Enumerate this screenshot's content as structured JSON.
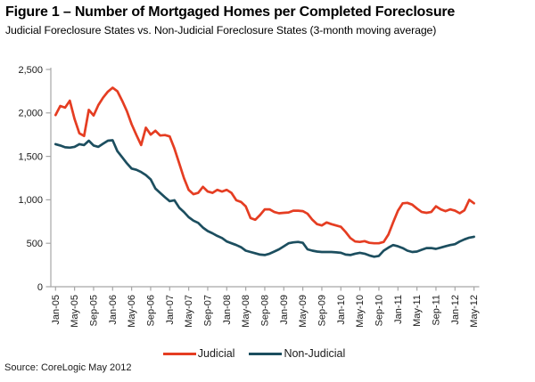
{
  "header": {
    "title": "Figure 1 – Number of Mortgaged Homes per Completed Foreclosure",
    "subtitle": "Judicial Foreclosure States vs. Non-Judicial Foreclosure States (3-month moving average)"
  },
  "source": "Source: CoreLogic May 2012",
  "legend": [
    {
      "label": "Judicial",
      "color": "#e53d22"
    },
    {
      "label": "Non-Judicial",
      "color": "#1c4e5f"
    }
  ],
  "chart_data": {
    "type": "line",
    "title": "Figure 1 – Number of Mortgaged Homes per Completed Foreclosure",
    "subtitle": "Judicial Foreclosure States vs. Non-Judicial Foreclosure States (3-month moving average)",
    "xlabel": "",
    "ylabel": "",
    "ylim": [
      0,
      2500
    ],
    "y_ticks": [
      0,
      500,
      1000,
      1500,
      2000,
      2500
    ],
    "y_tick_labels": [
      "0",
      "500",
      "1,000",
      "1,500",
      "2,000",
      "2,500"
    ],
    "x_tick_every": 4,
    "grid": false,
    "legend_position": "bottom",
    "axis_color": "#a6a6a6",
    "months": [
      "Jan-05",
      "Feb-05",
      "Mar-05",
      "Apr-05",
      "May-05",
      "Jun-05",
      "Jul-05",
      "Aug-05",
      "Sep-05",
      "Oct-05",
      "Nov-05",
      "Dec-05",
      "Jan-06",
      "Feb-06",
      "Mar-06",
      "Apr-06",
      "May-06",
      "Jun-06",
      "Jul-06",
      "Aug-06",
      "Sep-06",
      "Oct-06",
      "Nov-06",
      "Dec-06",
      "Jan-07",
      "Feb-07",
      "Mar-07",
      "Apr-07",
      "May-07",
      "Jun-07",
      "Jul-07",
      "Aug-07",
      "Sep-07",
      "Oct-07",
      "Nov-07",
      "Dec-07",
      "Jan-08",
      "Feb-08",
      "Mar-08",
      "Apr-08",
      "May-08",
      "Jun-08",
      "Jul-08",
      "Aug-08",
      "Sep-08",
      "Oct-08",
      "Nov-08",
      "Dec-08",
      "Jan-09",
      "Feb-09",
      "Mar-09",
      "Apr-09",
      "May-09",
      "Jun-09",
      "Jul-09",
      "Aug-09",
      "Sep-09",
      "Oct-09",
      "Nov-09",
      "Dec-09",
      "Jan-10",
      "Feb-10",
      "Mar-10",
      "Apr-10",
      "May-10",
      "Jun-10",
      "Jul-10",
      "Aug-10",
      "Sep-10",
      "Oct-10",
      "Nov-10",
      "Dec-10",
      "Jan-11",
      "Feb-11",
      "Mar-11",
      "Apr-11",
      "May-11",
      "Jun-11",
      "Jul-11",
      "Aug-11",
      "Sep-11",
      "Oct-11",
      "Nov-11",
      "Dec-11",
      "Jan-12",
      "Feb-12",
      "Mar-12",
      "Apr-12",
      "May-12"
    ],
    "series": [
      {
        "name": "Judicial",
        "color": "#e53d22",
        "values": [
          1975,
          2080,
          2060,
          2140,
          1930,
          1765,
          1735,
          2035,
          1970,
          2090,
          2175,
          2245,
          2290,
          2250,
          2140,
          2020,
          1870,
          1745,
          1630,
          1830,
          1750,
          1795,
          1740,
          1745,
          1730,
          1590,
          1420,
          1250,
          1115,
          1065,
          1080,
          1150,
          1095,
          1080,
          1115,
          1095,
          1115,
          1080,
          995,
          975,
          925,
          790,
          770,
          825,
          890,
          890,
          860,
          845,
          850,
          855,
          875,
          875,
          870,
          840,
          770,
          720,
          705,
          740,
          720,
          705,
          690,
          630,
          560,
          520,
          515,
          525,
          505,
          500,
          500,
          515,
          600,
          740,
          875,
          960,
          965,
          945,
          900,
          860,
          850,
          860,
          925,
          890,
          870,
          890,
          875,
          845,
          880,
          1000,
          960
        ]
      },
      {
        "name": "Non-Judicial",
        "color": "#1c4e5f",
        "values": [
          1640,
          1625,
          1605,
          1600,
          1610,
          1640,
          1630,
          1680,
          1625,
          1610,
          1645,
          1680,
          1685,
          1560,
          1490,
          1420,
          1360,
          1345,
          1320,
          1285,
          1235,
          1130,
          1080,
          1030,
          985,
          995,
          910,
          860,
          800,
          760,
          735,
          680,
          640,
          615,
          585,
          560,
          520,
          500,
          480,
          455,
          415,
          400,
          385,
          370,
          365,
          380,
          405,
          430,
          465,
          500,
          510,
          515,
          505,
          430,
          415,
          405,
          400,
          400,
          400,
          395,
          390,
          370,
          365,
          380,
          390,
          380,
          360,
          345,
          355,
          415,
          450,
          480,
          465,
          445,
          415,
          400,
          405,
          425,
          445,
          445,
          435,
          450,
          465,
          480,
          490,
          520,
          545,
          565,
          575
        ]
      }
    ]
  }
}
